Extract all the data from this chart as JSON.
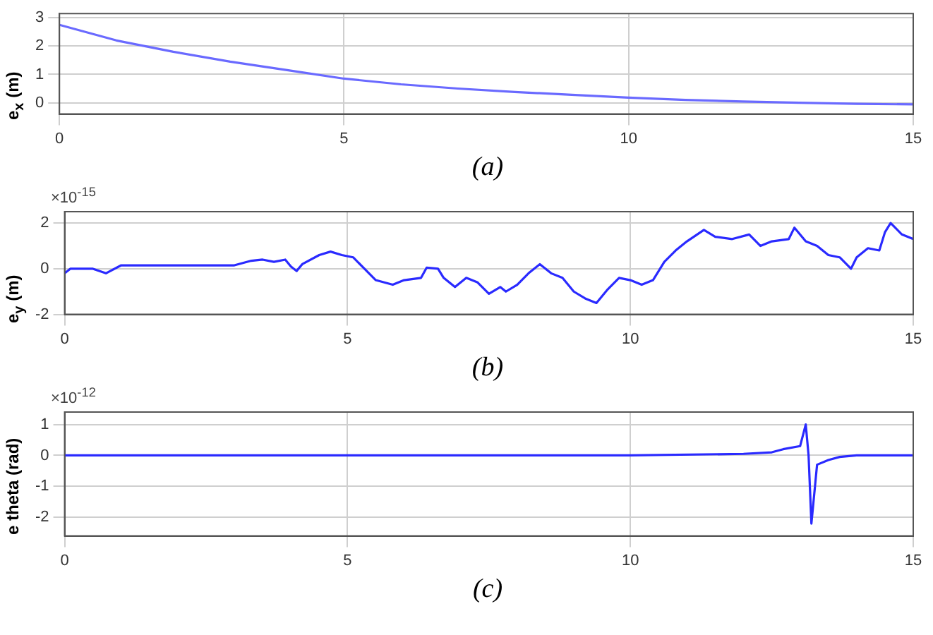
{
  "chart_data": [
    {
      "type": "line",
      "title": "(a)",
      "ylabel": "e$_{x}$ (m)",
      "xlim": [
        0,
        15
      ],
      "xticks": [
        0,
        5,
        10,
        15
      ],
      "ylim": [
        -0.4,
        3.15
      ],
      "yticks": [
        0,
        1,
        2,
        3
      ],
      "grid": true,
      "marker": "none",
      "line_style": "solid",
      "series": [
        {
          "color": "#6a6aff",
          "x": [
            0,
            1,
            2,
            3,
            4,
            5,
            6,
            7,
            8,
            9,
            10,
            11,
            12,
            13,
            14,
            15
          ],
          "values": [
            2.75,
            2.2,
            1.8,
            1.45,
            1.15,
            0.85,
            0.65,
            0.5,
            0.38,
            0.28,
            0.18,
            0.1,
            0.04,
            0.0,
            -0.04,
            -0.06
          ]
        }
      ]
    },
    {
      "type": "line",
      "title": "(b)",
      "ylabel": "e$_{y}$ (m)",
      "annotations": [
        "×10$^{-15}$"
      ],
      "xlim": [
        0,
        15
      ],
      "xticks": [
        0,
        5,
        10,
        15
      ],
      "ylim": [
        -2,
        2.5
      ],
      "yticks": [
        -2,
        0,
        2
      ],
      "grid": true,
      "marker": "none",
      "line_style": "solid",
      "series": [
        {
          "color": "#2a2aff",
          "x": [
            0,
            0.1,
            0.5,
            0.73,
            1,
            3,
            3.3,
            3.5,
            3.7,
            3.9,
            4.0,
            4.1,
            4.2,
            4.5,
            4.7,
            4.9,
            5.1,
            5.3,
            5.5,
            5.8,
            6.0,
            6.3,
            6.4,
            6.6,
            6.7,
            6.9,
            7.1,
            7.3,
            7.5,
            7.7,
            7.8,
            8.0,
            8.2,
            8.4,
            8.6,
            8.8,
            9.0,
            9.2,
            9.4,
            9.6,
            9.8,
            10.0,
            10.2,
            10.4,
            10.6,
            10.8,
            11.0,
            11.3,
            11.5,
            11.8,
            12.1,
            12.3,
            12.5,
            12.8,
            12.9,
            13.1,
            13.3,
            13.5,
            13.7,
            13.9,
            14.0,
            14.2,
            14.4,
            14.5,
            14.6,
            14.8,
            15
          ],
          "values": [
            -0.2,
            0,
            0,
            -0.2,
            0.15,
            0.15,
            0.35,
            0.4,
            0.3,
            0.4,
            0.1,
            -0.1,
            0.2,
            0.6,
            0.75,
            0.6,
            0.5,
            0,
            -0.5,
            -0.7,
            -0.5,
            -0.4,
            0.05,
            0,
            -0.4,
            -0.8,
            -0.4,
            -0.6,
            -1.1,
            -0.8,
            -1.0,
            -0.7,
            -0.2,
            0.2,
            -0.2,
            -0.4,
            -1.0,
            -1.3,
            -1.5,
            -0.9,
            -0.4,
            -0.5,
            -0.7,
            -0.5,
            0.3,
            0.8,
            1.2,
            1.7,
            1.4,
            1.3,
            1.5,
            1.0,
            1.2,
            1.3,
            1.8,
            1.2,
            1.0,
            0.6,
            0.5,
            0,
            0.5,
            0.9,
            0.8,
            1.6,
            2.0,
            1.5,
            1.3
          ]
        }
      ]
    },
    {
      "type": "line",
      "title": "(c)",
      "ylabel": "e theta (rad)",
      "annotations": [
        "×10$^{-12}$"
      ],
      "xlim": [
        0,
        15
      ],
      "xticks": [
        0,
        5,
        10,
        15
      ],
      "ylim": [
        -2.6,
        1.4
      ],
      "yticks": [
        -2,
        -1,
        0,
        1
      ],
      "grid": true,
      "marker": "none",
      "line_style": "solid",
      "series": [
        {
          "color": "#2a2aff",
          "x": [
            0,
            10,
            12,
            12.5,
            12.7,
            13.0,
            13.1,
            13.15,
            13.2,
            13.3,
            13.5,
            13.7,
            14,
            15
          ],
          "values": [
            0,
            0,
            0.05,
            0.1,
            0.2,
            0.3,
            1.0,
            0,
            -2.2,
            -0.3,
            -0.15,
            -0.05,
            0,
            0
          ]
        }
      ]
    }
  ]
}
